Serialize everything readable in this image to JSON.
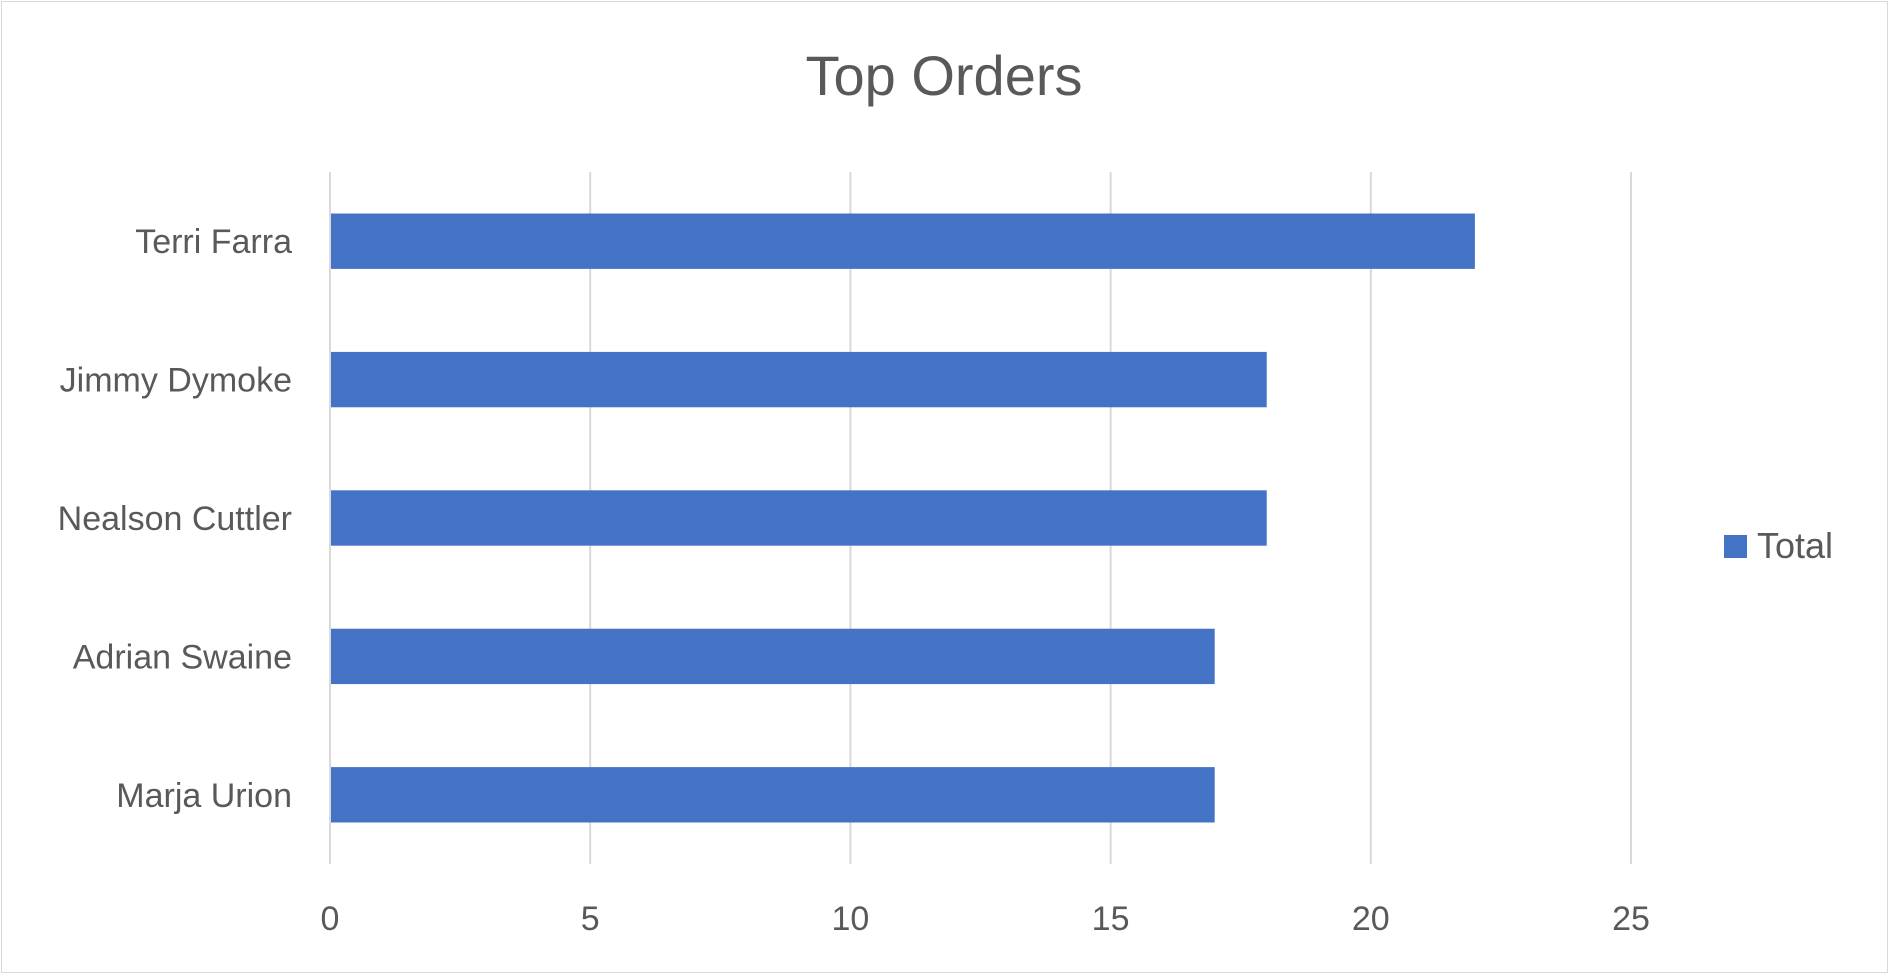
{
  "chart_data": {
    "type": "bar",
    "orientation": "horizontal",
    "title": "Top Orders",
    "xlabel": "",
    "ylabel": "",
    "categories": [
      "Terri Farra",
      "Jimmy Dymoke",
      "Nealson Cuttler",
      "Adrian Swaine",
      "Marja Urion"
    ],
    "series": [
      {
        "name": "Total",
        "values": [
          22,
          18,
          18,
          17,
          17
        ],
        "color": "#4472C4"
      }
    ],
    "xlim": [
      0,
      25
    ],
    "xticks": [
      0,
      5,
      10,
      15,
      20,
      25
    ],
    "xtick_labels": [
      "0",
      "5",
      "10",
      "15",
      "20",
      "25"
    ],
    "grid": "vertical",
    "legend_position": "right"
  }
}
